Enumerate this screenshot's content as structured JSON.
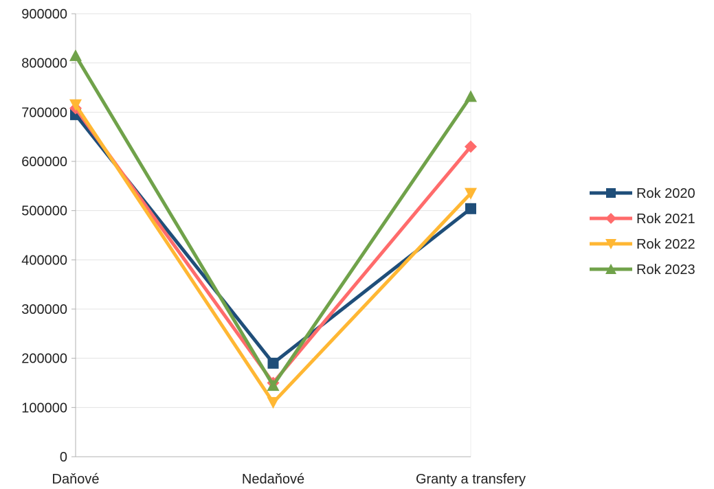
{
  "chart_data": {
    "type": "line",
    "title": "",
    "categories": [
      "Daňové",
      "Nedaňové",
      "Granty a transfery"
    ],
    "ylim": [
      0,
      900000
    ],
    "yticks": [
      "0",
      "100000",
      "200000",
      "300000",
      "400000",
      "500000",
      "600000",
      "700000",
      "800000",
      "900000"
    ],
    "grid": true,
    "legend_position": "right",
    "series": [
      {
        "name": "Rok 2020",
        "values": [
          695000,
          190000,
          504000
        ],
        "color": "#1f4e79",
        "marker": "square"
      },
      {
        "name": "Rok 2021",
        "values": [
          708000,
          150000,
          630000
        ],
        "color": "#ff6b6b",
        "marker": "diamond"
      },
      {
        "name": "Rok 2022",
        "values": [
          715000,
          110000,
          535000
        ],
        "color": "#ffb733",
        "marker": "triangle-down"
      },
      {
        "name": "Rok 2023",
        "values": [
          815000,
          145000,
          732000
        ],
        "color": "#70a24a",
        "marker": "triangle-up"
      }
    ]
  }
}
